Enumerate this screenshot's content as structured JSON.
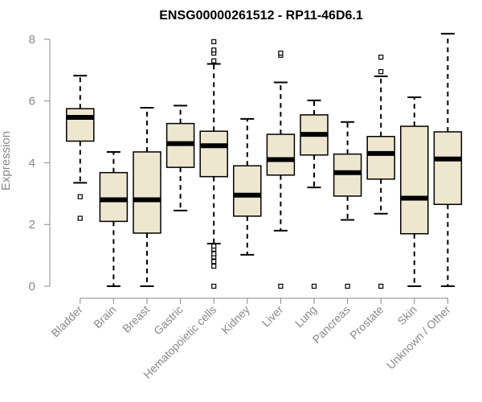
{
  "chart_data": {
    "type": "boxplot",
    "title": "ENSG00000261512 - RP11-46D6.1",
    "xlabel": "",
    "ylabel": "Expression",
    "ylim": [
      0,
      8.2
    ],
    "yticks": [
      0,
      2,
      4,
      6,
      8
    ],
    "colors": {
      "box_fill": "#ede7cf",
      "stroke": "#000000",
      "axis": "#888888"
    },
    "categories": [
      "Bladder",
      "Brain",
      "Breast",
      "Gastric",
      "Hematopoietic cells",
      "Kidney",
      "Liver",
      "Lung",
      "Pancreas",
      "Prostate",
      "Skin",
      "Unknown / Other"
    ],
    "boxes": [
      {
        "whisker_low": 3.35,
        "q1": 4.7,
        "median": 5.47,
        "q3": 5.75,
        "whisker_high": 6.82,
        "outliers": [
          2.2,
          2.9
        ]
      },
      {
        "whisker_low": 0.0,
        "q1": 2.1,
        "median": 2.8,
        "q3": 3.68,
        "whisker_high": 4.35,
        "outliers": []
      },
      {
        "whisker_low": 0.0,
        "q1": 1.72,
        "median": 2.8,
        "q3": 4.35,
        "whisker_high": 5.78,
        "outliers": []
      },
      {
        "whisker_low": 2.45,
        "q1": 3.85,
        "median": 4.62,
        "q3": 5.27,
        "whisker_high": 5.85,
        "outliers": []
      },
      {
        "whisker_low": 1.38,
        "q1": 3.55,
        "median": 4.55,
        "q3": 5.02,
        "whisker_high": 7.2,
        "outliers": [
          0.0,
          0.65,
          0.8,
          0.95,
          1.05,
          1.2,
          1.3,
          7.3,
          7.55,
          7.65,
          7.92
        ]
      },
      {
        "whisker_low": 1.02,
        "q1": 2.27,
        "median": 2.95,
        "q3": 3.9,
        "whisker_high": 5.42,
        "outliers": []
      },
      {
        "whisker_low": 1.8,
        "q1": 3.6,
        "median": 4.1,
        "q3": 4.92,
        "whisker_high": 6.6,
        "outliers": [
          0.0,
          7.48,
          7.55
        ]
      },
      {
        "whisker_low": 3.2,
        "q1": 4.25,
        "median": 4.92,
        "q3": 5.55,
        "whisker_high": 6.02,
        "outliers": [
          0.0
        ]
      },
      {
        "whisker_low": 2.15,
        "q1": 2.92,
        "median": 3.68,
        "q3": 4.28,
        "whisker_high": 5.32,
        "outliers": [
          0.0
        ]
      },
      {
        "whisker_low": 2.35,
        "q1": 3.47,
        "median": 4.3,
        "q3": 4.85,
        "whisker_high": 6.8,
        "outliers": [
          0.0,
          6.95,
          7.42
        ]
      },
      {
        "whisker_low": 0.0,
        "q1": 1.7,
        "median": 2.85,
        "q3": 5.18,
        "whisker_high": 6.12,
        "outliers": []
      },
      {
        "whisker_low": 0.0,
        "q1": 2.65,
        "median": 4.12,
        "q3": 5.0,
        "whisker_high": 8.18,
        "outliers": []
      }
    ]
  }
}
